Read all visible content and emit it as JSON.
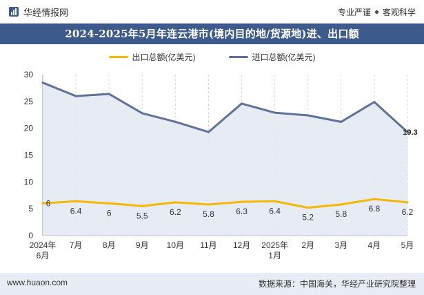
{
  "header": {
    "brand": "华经情报网",
    "tags": [
      "专业严谨",
      "客观科学"
    ]
  },
  "title": "2024-2025年5月年连云港市(境内目的地/货源地)进、出口额",
  "colors": {
    "export": "#f5b800",
    "import": "#5e7196",
    "import_fill": "#e3e8f2",
    "title_bg": "#3d5a8c",
    "footer_bg": "#e8edf5",
    "grid": "#d9d9d9"
  },
  "chart_data": {
    "type": "line",
    "title": "2024-2025年5月年连云港市(境内目的地/货源地)进、出口额",
    "categories": [
      "2024年\n6月",
      "7月",
      "8月",
      "9月",
      "10月",
      "11月",
      "12月",
      "2025年\n1月",
      "2月",
      "3月",
      "4月",
      "5月"
    ],
    "series": [
      {
        "name": "出口总额(亿美元)",
        "values": [
          6,
          6.4,
          6,
          5.5,
          6.2,
          5.8,
          6.3,
          6.4,
          5.2,
          5.8,
          6.8,
          6.2
        ]
      },
      {
        "name": "进口总额(亿美元)",
        "values": [
          28.5,
          26.0,
          26.4,
          22.8,
          21.2,
          19.3,
          24.6,
          22.9,
          22.4,
          21.2,
          24.9,
          19.3
        ]
      }
    ],
    "ylim": [
      0,
      30
    ],
    "yticks": [
      0,
      5,
      10,
      15,
      20,
      25,
      30
    ],
    "import_labeled_value": "19.3",
    "grid": "vertical dashed lines",
    "legend": "top-center"
  },
  "footer": {
    "website": "www.huaon.com",
    "source": "数据来源：中国海关，华经产业研究院整理"
  }
}
